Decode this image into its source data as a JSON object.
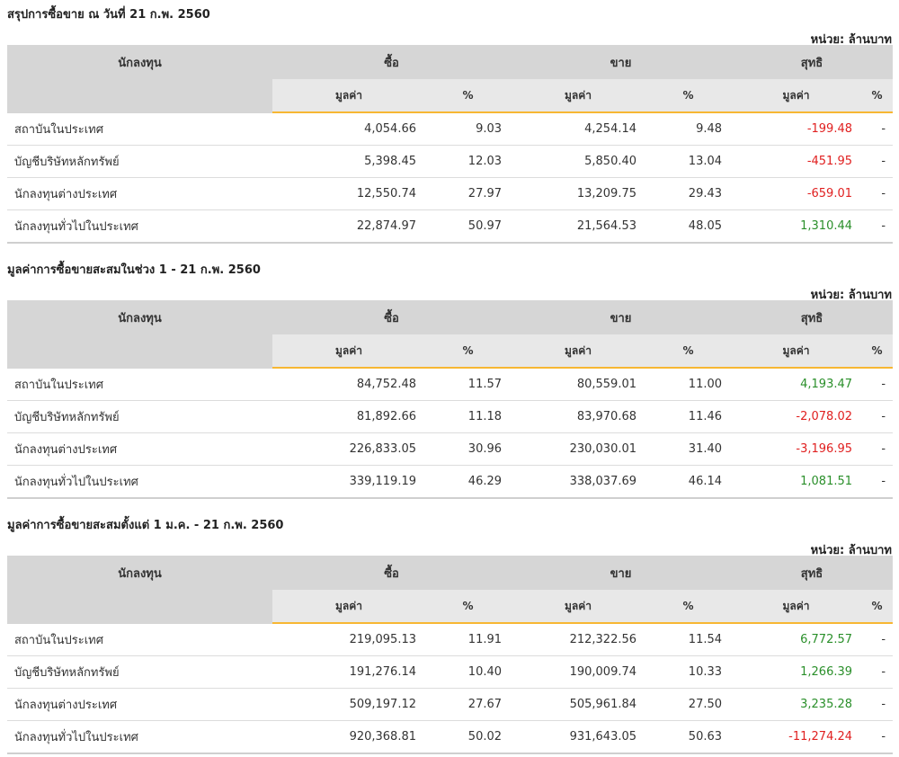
{
  "unit_label": "หน่วย: ล้านบาท",
  "headers": {
    "investor": "นักลงทุน",
    "buy": "ซื้อ",
    "sell": "ขาย",
    "net": "สุทธิ",
    "value": "มูลค่า",
    "percent": "%"
  },
  "colors": {
    "negative": "#e02020",
    "positive": "#2a8f2a",
    "accent": "#f7b733"
  },
  "tables": [
    {
      "title": "สรุปการซื้อขาย ณ วันที่ 21 ก.พ. 2560",
      "rows": [
        {
          "name": "สถาบันในประเทศ",
          "buy": "4,054.66",
          "buy_pct": "9.03",
          "sell": "4,254.14",
          "sell_pct": "9.48",
          "net": "-199.48",
          "net_sign": "neg",
          "net_pct": "-"
        },
        {
          "name": "บัญชีบริษัทหลักทรัพย์",
          "buy": "5,398.45",
          "buy_pct": "12.03",
          "sell": "5,850.40",
          "sell_pct": "13.04",
          "net": "-451.95",
          "net_sign": "neg",
          "net_pct": "-"
        },
        {
          "name": "นักลงทุนต่างประเทศ",
          "buy": "12,550.74",
          "buy_pct": "27.97",
          "sell": "13,209.75",
          "sell_pct": "29.43",
          "net": "-659.01",
          "net_sign": "neg",
          "net_pct": "-"
        },
        {
          "name": "นักลงทุนทั่วไปในประเทศ",
          "buy": "22,874.97",
          "buy_pct": "50.97",
          "sell": "21,564.53",
          "sell_pct": "48.05",
          "net": "1,310.44",
          "net_sign": "pos",
          "net_pct": "-"
        }
      ]
    },
    {
      "title": "มูลค่าการซื้อขายสะสมในช่วง 1 - 21 ก.พ. 2560",
      "rows": [
        {
          "name": "สถาบันในประเทศ",
          "buy": "84,752.48",
          "buy_pct": "11.57",
          "sell": "80,559.01",
          "sell_pct": "11.00",
          "net": "4,193.47",
          "net_sign": "pos",
          "net_pct": "-"
        },
        {
          "name": "บัญชีบริษัทหลักทรัพย์",
          "buy": "81,892.66",
          "buy_pct": "11.18",
          "sell": "83,970.68",
          "sell_pct": "11.46",
          "net": "-2,078.02",
          "net_sign": "neg",
          "net_pct": "-"
        },
        {
          "name": "นักลงทุนต่างประเทศ",
          "buy": "226,833.05",
          "buy_pct": "30.96",
          "sell": "230,030.01",
          "sell_pct": "31.40",
          "net": "-3,196.95",
          "net_sign": "neg",
          "net_pct": "-"
        },
        {
          "name": "นักลงทุนทั่วไปในประเทศ",
          "buy": "339,119.19",
          "buy_pct": "46.29",
          "sell": "338,037.69",
          "sell_pct": "46.14",
          "net": "1,081.51",
          "net_sign": "pos",
          "net_pct": "-"
        }
      ]
    },
    {
      "title": "มูลค่าการซื้อขายสะสมตั้งแต่ 1 ม.ค. - 21 ก.พ. 2560",
      "rows": [
        {
          "name": "สถาบันในประเทศ",
          "buy": "219,095.13",
          "buy_pct": "11.91",
          "sell": "212,322.56",
          "sell_pct": "11.54",
          "net": "6,772.57",
          "net_sign": "pos",
          "net_pct": "-"
        },
        {
          "name": "บัญชีบริษัทหลักทรัพย์",
          "buy": "191,276.14",
          "buy_pct": "10.40",
          "sell": "190,009.74",
          "sell_pct": "10.33",
          "net": "1,266.39",
          "net_sign": "pos",
          "net_pct": "-"
        },
        {
          "name": "นักลงทุนต่างประเทศ",
          "buy": "509,197.12",
          "buy_pct": "27.67",
          "sell": "505,961.84",
          "sell_pct": "27.50",
          "net": "3,235.28",
          "net_sign": "pos",
          "net_pct": "-"
        },
        {
          "name": "นักลงทุนทั่วไปในประเทศ",
          "buy": "920,368.81",
          "buy_pct": "50.02",
          "sell": "931,643.05",
          "sell_pct": "50.63",
          "net": "-11,274.24",
          "net_sign": "neg",
          "net_pct": "-"
        }
      ]
    }
  ]
}
